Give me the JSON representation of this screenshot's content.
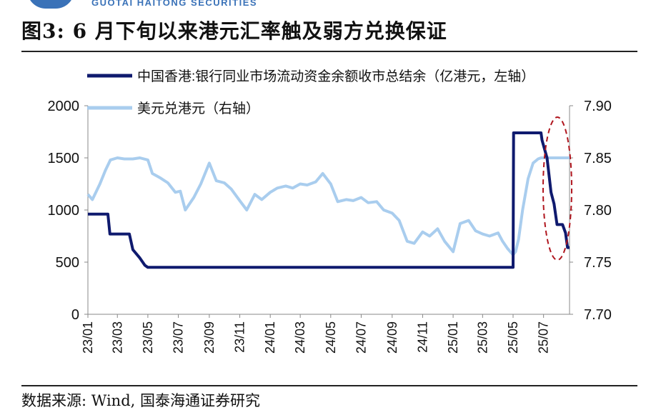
{
  "header": {
    "logo_text": "GUOTAI HAITONG SECURITIES"
  },
  "figure": {
    "title": "图3:  6 月下旬以来港元汇率触及弱方兑换保证",
    "source": "数据来源:  Wind,  国泰海通证券研究"
  },
  "colors": {
    "hibor_series": "#0f1a6e",
    "fx_series": "#a9cdee",
    "highlight": "#b0161e"
  },
  "chart_data": {
    "type": "line",
    "title": "图3:  6 月下旬以来港元汇率触及弱方兑换保证",
    "xlabel": "",
    "x_tick_labels": [
      "23/01",
      "23/03",
      "23/05",
      "23/07",
      "23/09",
      "23/11",
      "24/01",
      "24/03",
      "24/05",
      "24/07",
      "24/09",
      "24/11",
      "25/01",
      "25/03",
      "25/05",
      "25/07"
    ],
    "y_left": {
      "ticks": [
        0,
        500,
        1000,
        1500,
        2000
      ],
      "ylim": [
        0,
        2000
      ]
    },
    "y_right": {
      "ticks": [
        "7.70",
        "7.75",
        "7.80",
        "7.85",
        "7.90"
      ],
      "ylim": [
        7.7,
        7.9
      ]
    },
    "legend": {
      "placement": "top-left"
    },
    "grid": false,
    "annotation": "red dashed ellipse around the recent drop at the end of the series",
    "series": [
      {
        "name": "中国香港:银行同业市场流动资金余额收市总结余(亿港元,左轴)",
        "legend_label": "中国香港:银行同业市场流动资金余额收市总结余（亿港元，左轴）",
        "axis": "left",
        "points": [
          [
            "2023-01-01",
            960
          ],
          [
            "2023-02-10",
            960
          ],
          [
            "2023-02-14",
            770
          ],
          [
            "2023-03-25",
            770
          ],
          [
            "2023-04-01",
            620
          ],
          [
            "2023-04-15",
            540
          ],
          [
            "2023-04-25",
            470
          ],
          [
            "2023-05-01",
            450
          ],
          [
            "2023-06-01",
            450
          ],
          [
            "2023-07-01",
            450
          ],
          [
            "2023-08-01",
            450
          ],
          [
            "2023-09-01",
            450
          ],
          [
            "2023-10-01",
            450
          ],
          [
            "2023-11-01",
            450
          ],
          [
            "2023-12-01",
            450
          ],
          [
            "2024-01-01",
            450
          ],
          [
            "2024-02-01",
            450
          ],
          [
            "2024-03-01",
            450
          ],
          [
            "2024-04-01",
            450
          ],
          [
            "2024-05-01",
            450
          ],
          [
            "2024-06-01",
            450
          ],
          [
            "2024-07-01",
            450
          ],
          [
            "2024-08-01",
            450
          ],
          [
            "2024-09-01",
            450
          ],
          [
            "2024-10-01",
            450
          ],
          [
            "2024-11-01",
            450
          ],
          [
            "2024-12-01",
            450
          ],
          [
            "2025-01-01",
            450
          ],
          [
            "2025-02-01",
            450
          ],
          [
            "2025-03-01",
            450
          ],
          [
            "2025-04-01",
            450
          ],
          [
            "2025-05-01",
            450
          ],
          [
            "2025-05-02",
            1740
          ],
          [
            "2025-06-01",
            1740
          ],
          [
            "2025-06-26",
            1740
          ],
          [
            "2025-06-28",
            1670
          ],
          [
            "2025-07-08",
            1500
          ],
          [
            "2025-07-16",
            1170
          ],
          [
            "2025-07-22",
            1060
          ],
          [
            "2025-07-28",
            860
          ],
          [
            "2025-08-08",
            860
          ],
          [
            "2025-08-14",
            780
          ],
          [
            "2025-08-18",
            640
          ],
          [
            "2025-08-22",
            640
          ]
        ]
      },
      {
        "name": "美元兑港元(右轴)",
        "legend_label": "美元兑港元（右轴）",
        "axis": "right",
        "points": [
          [
            "2023-01-01",
            7.815
          ],
          [
            "2023-01-10",
            7.81
          ],
          [
            "2023-01-25",
            7.825
          ],
          [
            "2023-02-05",
            7.838
          ],
          [
            "2023-02-15",
            7.848
          ],
          [
            "2023-03-01",
            7.85
          ],
          [
            "2023-03-15",
            7.849
          ],
          [
            "2023-04-01",
            7.849
          ],
          [
            "2023-04-15",
            7.85
          ],
          [
            "2023-05-01",
            7.848
          ],
          [
            "2023-05-10",
            7.835
          ],
          [
            "2023-05-25",
            7.831
          ],
          [
            "2023-06-10",
            7.826
          ],
          [
            "2023-06-25",
            7.817
          ],
          [
            "2023-07-05",
            7.818
          ],
          [
            "2023-07-15",
            7.8
          ],
          [
            "2023-08-01",
            7.812
          ],
          [
            "2023-08-15",
            7.825
          ],
          [
            "2023-09-01",
            7.845
          ],
          [
            "2023-09-15",
            7.828
          ],
          [
            "2023-10-01",
            7.826
          ],
          [
            "2023-10-15",
            7.82
          ],
          [
            "2023-11-01",
            7.809
          ],
          [
            "2023-11-15",
            7.8
          ],
          [
            "2023-12-01",
            7.815
          ],
          [
            "2023-12-15",
            7.81
          ],
          [
            "2024-01-01",
            7.817
          ],
          [
            "2024-01-15",
            7.821
          ],
          [
            "2024-02-01",
            7.823
          ],
          [
            "2024-02-15",
            7.821
          ],
          [
            "2024-03-01",
            7.825
          ],
          [
            "2024-03-15",
            7.824
          ],
          [
            "2024-04-01",
            7.827
          ],
          [
            "2024-04-15",
            7.835
          ],
          [
            "2024-05-01",
            7.825
          ],
          [
            "2024-05-15",
            7.808
          ],
          [
            "2024-06-01",
            7.81
          ],
          [
            "2024-06-15",
            7.809
          ],
          [
            "2024-07-01",
            7.812
          ],
          [
            "2024-07-15",
            7.807
          ],
          [
            "2024-08-01",
            7.808
          ],
          [
            "2024-08-15",
            7.8
          ],
          [
            "2024-09-01",
            7.797
          ],
          [
            "2024-09-15",
            7.79
          ],
          [
            "2024-10-01",
            7.77
          ],
          [
            "2024-10-15",
            7.768
          ],
          [
            "2024-11-01",
            7.779
          ],
          [
            "2024-11-15",
            7.775
          ],
          [
            "2024-12-01",
            7.782
          ],
          [
            "2024-12-15",
            7.77
          ],
          [
            "2025-01-01",
            7.76
          ],
          [
            "2025-01-15",
            7.787
          ],
          [
            "2025-02-01",
            7.79
          ],
          [
            "2025-02-15",
            7.78
          ],
          [
            "2025-03-01",
            7.777
          ],
          [
            "2025-03-15",
            7.775
          ],
          [
            "2025-04-01",
            7.778
          ],
          [
            "2025-04-10",
            7.77
          ],
          [
            "2025-04-20",
            7.763
          ],
          [
            "2025-05-01",
            7.757
          ],
          [
            "2025-05-06",
            7.76
          ],
          [
            "2025-05-12",
            7.772
          ],
          [
            "2025-05-20",
            7.8
          ],
          [
            "2025-05-31",
            7.83
          ],
          [
            "2025-06-10",
            7.845
          ],
          [
            "2025-06-20",
            7.849
          ],
          [
            "2025-06-26",
            7.85
          ],
          [
            "2025-07-10",
            7.85
          ],
          [
            "2025-07-25",
            7.85
          ],
          [
            "2025-08-10",
            7.85
          ],
          [
            "2025-08-22",
            7.85
          ]
        ]
      }
    ]
  }
}
